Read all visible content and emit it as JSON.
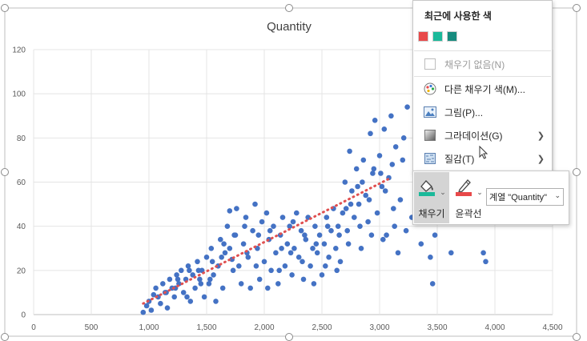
{
  "chart": {
    "title": "Quantity",
    "y_ticks": [
      "0",
      "20",
      "40",
      "60",
      "80",
      "100",
      "120"
    ],
    "x_ticks": [
      "0",
      "500",
      "1,000",
      "1,500",
      "2,000",
      "2,500",
      "3,000",
      "3,500",
      "4,000",
      "4,500"
    ]
  },
  "chart_data": {
    "type": "scatter",
    "title": "Quantity",
    "xlabel": "",
    "ylabel": "",
    "xlim": [
      0,
      4500
    ],
    "ylim": [
      0,
      120
    ],
    "grid": true,
    "legend": "none",
    "point_color": "#4472C4",
    "trendline": {
      "type": "linear",
      "color": "#E05050",
      "style": "dotted",
      "x": [
        950,
        3100
      ],
      "y": [
        5,
        62
      ]
    },
    "points": [
      [
        950,
        1
      ],
      [
        980,
        4
      ],
      [
        1000,
        6
      ],
      [
        1020,
        2
      ],
      [
        1040,
        9
      ],
      [
        1060,
        12
      ],
      [
        1080,
        8
      ],
      [
        1100,
        5
      ],
      [
        1120,
        14
      ],
      [
        1140,
        10
      ],
      [
        1160,
        3
      ],
      [
        1180,
        16
      ],
      [
        1200,
        12
      ],
      [
        1220,
        8
      ],
      [
        1240,
        18
      ],
      [
        1260,
        14
      ],
      [
        1280,
        20
      ],
      [
        1300,
        10
      ],
      [
        1320,
        16
      ],
      [
        1340,
        22
      ],
      [
        1360,
        6
      ],
      [
        1380,
        18
      ],
      [
        1400,
        12
      ],
      [
        1420,
        24
      ],
      [
        1440,
        16
      ],
      [
        1460,
        20
      ],
      [
        1480,
        8
      ],
      [
        1500,
        26
      ],
      [
        1520,
        14
      ],
      [
        1540,
        30
      ],
      [
        1560,
        18
      ],
      [
        1580,
        6
      ],
      [
        1600,
        22
      ],
      [
        1620,
        34
      ],
      [
        1640,
        12
      ],
      [
        1660,
        28
      ],
      [
        1680,
        40
      ],
      [
        1700,
        30
      ],
      [
        1700,
        47
      ],
      [
        1720,
        25
      ],
      [
        1740,
        36
      ],
      [
        1760,
        48
      ],
      [
        1780,
        22
      ],
      [
        1800,
        14
      ],
      [
        1820,
        32
      ],
      [
        1840,
        44
      ],
      [
        1860,
        26
      ],
      [
        1880,
        12
      ],
      [
        1900,
        38
      ],
      [
        1920,
        50
      ],
      [
        1940,
        30
      ],
      [
        1960,
        16
      ],
      [
        1980,
        42
      ],
      [
        2000,
        24
      ],
      [
        2020,
        46
      ],
      [
        2040,
        34
      ],
      [
        2060,
        20
      ],
      [
        2080,
        40
      ],
      [
        2100,
        28
      ],
      [
        2120,
        14
      ],
      [
        2140,
        36
      ],
      [
        2160,
        44
      ],
      [
        2180,
        22
      ],
      [
        2200,
        32
      ],
      [
        2220,
        40
      ],
      [
        2240,
        18
      ],
      [
        2260,
        30
      ],
      [
        2280,
        46
      ],
      [
        2300,
        26
      ],
      [
        2320,
        38
      ],
      [
        2340,
        16
      ],
      [
        2360,
        34
      ],
      [
        2380,
        44
      ],
      [
        2400,
        22
      ],
      [
        2420,
        30
      ],
      [
        2440,
        40
      ],
      [
        2460,
        28
      ],
      [
        2480,
        36
      ],
      [
        2500,
        18
      ],
      [
        2520,
        32
      ],
      [
        2540,
        44
      ],
      [
        2560,
        26
      ],
      [
        2580,
        38
      ],
      [
        2600,
        48
      ],
      [
        2620,
        30
      ],
      [
        2640,
        40
      ],
      [
        2660,
        24
      ],
      [
        2680,
        46
      ],
      [
        2700,
        60
      ],
      [
        2720,
        38
      ],
      [
        2740,
        74
      ],
      [
        2760,
        56
      ],
      [
        2780,
        44
      ],
      [
        2800,
        66
      ],
      [
        2820,
        50
      ],
      [
        2840,
        30
      ],
      [
        2860,
        70
      ],
      [
        2880,
        54
      ],
      [
        2900,
        42
      ],
      [
        2920,
        82
      ],
      [
        2940,
        64
      ],
      [
        2960,
        88
      ],
      [
        2980,
        46
      ],
      [
        3000,
        72
      ],
      [
        3020,
        58
      ],
      [
        3040,
        84
      ],
      [
        3060,
        36
      ],
      [
        3080,
        62
      ],
      [
        3100,
        90
      ],
      [
        3120,
        48
      ],
      [
        3140,
        76
      ],
      [
        3160,
        28
      ],
      [
        3180,
        52
      ],
      [
        3200,
        70
      ],
      [
        3240,
        94
      ],
      [
        3280,
        44
      ],
      [
        3320,
        60
      ],
      [
        3360,
        32
      ],
      [
        3400,
        54
      ],
      [
        3440,
        26
      ],
      [
        3460,
        14
      ],
      [
        3480,
        36
      ],
      [
        3520,
        46
      ],
      [
        3620,
        28
      ],
      [
        3900,
        28
      ],
      [
        3920,
        24
      ],
      [
        1150,
        10
      ],
      [
        1250,
        16
      ],
      [
        1350,
        20
      ],
      [
        1450,
        14
      ],
      [
        1550,
        24
      ],
      [
        1650,
        32
      ],
      [
        1750,
        36
      ],
      [
        1850,
        28
      ],
      [
        1950,
        36
      ],
      [
        2050,
        38
      ],
      [
        2150,
        30
      ],
      [
        2250,
        42
      ],
      [
        2350,
        36
      ],
      [
        2450,
        32
      ],
      [
        2550,
        40
      ],
      [
        2650,
        36
      ],
      [
        2750,
        50
      ],
      [
        2850,
        60
      ],
      [
        2950,
        66
      ],
      [
        3050,
        56
      ],
      [
        1230,
        12
      ],
      [
        1330,
        8
      ],
      [
        1430,
        20
      ],
      [
        1530,
        16
      ],
      [
        1630,
        26
      ],
      [
        1730,
        20
      ],
      [
        1830,
        40
      ],
      [
        1930,
        22
      ],
      [
        2030,
        12
      ],
      [
        2130,
        20
      ],
      [
        2230,
        28
      ],
      [
        2330,
        24
      ],
      [
        2430,
        14
      ],
      [
        2530,
        22
      ],
      [
        2630,
        20
      ],
      [
        2730,
        32
      ],
      [
        2830,
        40
      ],
      [
        2930,
        36
      ],
      [
        3030,
        34
      ],
      [
        3130,
        40
      ],
      [
        3230,
        38
      ],
      [
        2710,
        48
      ],
      [
        2810,
        58
      ],
      [
        2910,
        52
      ],
      [
        3010,
        64
      ],
      [
        3110,
        68
      ],
      [
        3210,
        80
      ],
      [
        3330,
        88
      ]
    ]
  },
  "menu": {
    "recent_colors_label": "최근에 사용한 색",
    "recent_colors": [
      "#E8494A",
      "#1BB99A",
      "#178B7E"
    ],
    "items": [
      {
        "label": "채우기 없음(N)",
        "icon": "no-fill-icon",
        "disabled": true
      },
      {
        "label": "다른 채우기 색(M)...",
        "icon": "color-palette-icon"
      },
      {
        "label": "그림(P)...",
        "icon": "picture-icon"
      },
      {
        "label": "그라데이션(G)",
        "icon": "gradient-icon",
        "submenu": true
      },
      {
        "label": "질감(T)",
        "icon": "texture-icon",
        "submenu": true
      }
    ]
  },
  "toolbar": {
    "fill_label": "채우기",
    "outline_label": "윤곽선",
    "series_selector": "계열 \"Quantity\"",
    "fill_color": "#1BB99A",
    "outline_color": "#E8494A"
  }
}
